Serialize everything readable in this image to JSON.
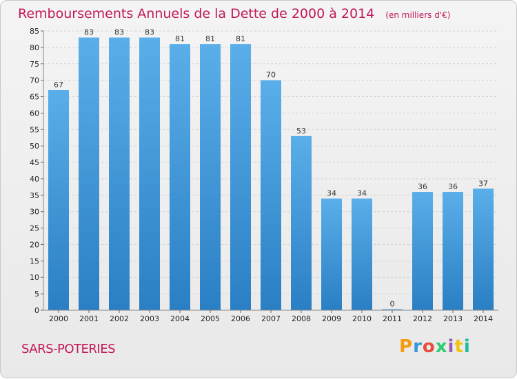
{
  "chart_data": {
    "type": "bar",
    "title": "Remboursements Annuels de la Dette de 2000 à 2014",
    "subtitle": "(en milliers d'€)",
    "categories": [
      "2000",
      "2001",
      "2002",
      "2003",
      "2004",
      "2005",
      "2006",
      "2007",
      "2008",
      "2009",
      "2010",
      "2011",
      "2012",
      "2013",
      "2014"
    ],
    "values": [
      67,
      83,
      83,
      83,
      81,
      81,
      81,
      70,
      53,
      34,
      34,
      0,
      36,
      36,
      37
    ],
    "ylim": [
      0,
      85
    ],
    "yticks": [
      0,
      5,
      10,
      15,
      20,
      25,
      30,
      35,
      40,
      45,
      50,
      55,
      60,
      65,
      70,
      75,
      80,
      85
    ],
    "grid": true,
    "bar_color": "#4aa3e2"
  },
  "footer": {
    "commune": "SARS-POTERIES",
    "brand": "Proxiti",
    "brand_colors": [
      "#f39c12",
      "#3498db",
      "#e74c3c",
      "#2ecc71",
      "#9b59b6",
      "#f1c40f",
      "#1abc9c"
    ]
  }
}
